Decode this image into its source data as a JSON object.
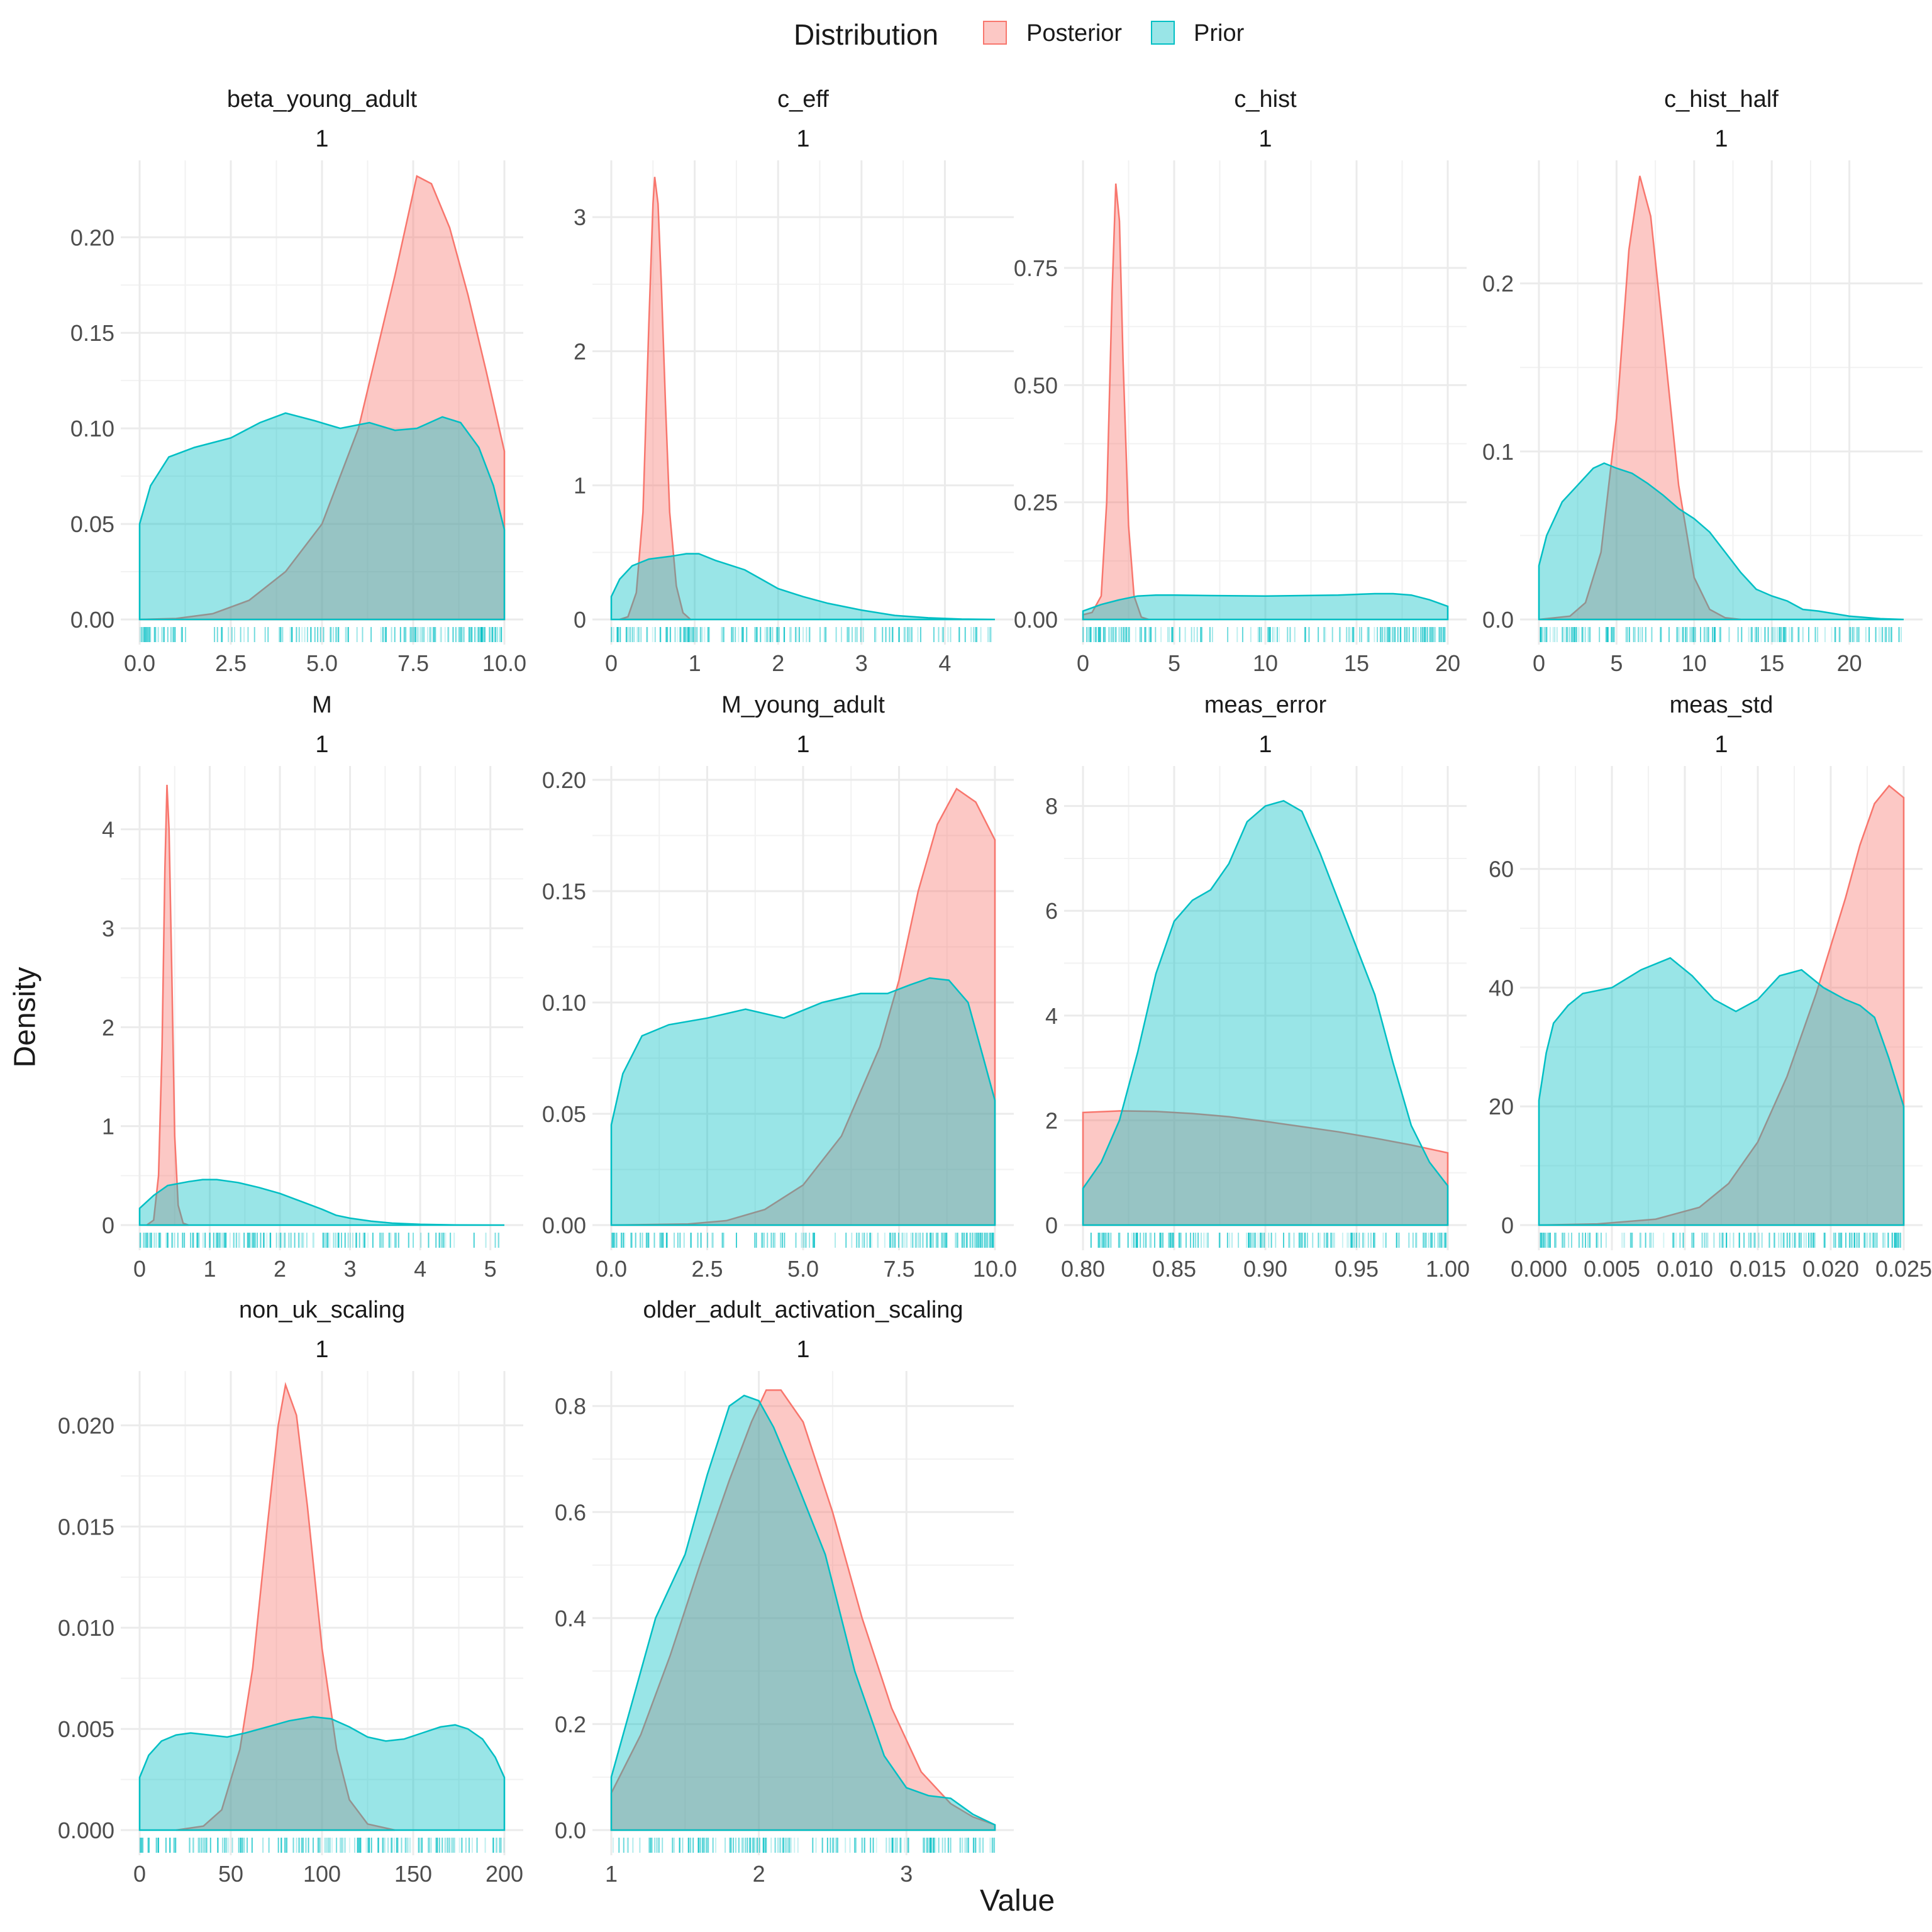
{
  "legend": {
    "title": "Distribution",
    "position": "top",
    "entries": [
      {
        "label": "Posterior",
        "fill": "#F8766D",
        "stroke": "#F8766D"
      },
      {
        "label": "Prior",
        "fill": "#00BFC4",
        "stroke": "#00BFC4"
      }
    ]
  },
  "axes": {
    "xlabel": "Value",
    "ylabel": "Density"
  },
  "colors": {
    "posterior": "#F8766D",
    "prior": "#00BFC4",
    "overlap_line": "#8a8a8a",
    "grid": "#ebebeb"
  },
  "chart_data": [
    {
      "type": "area",
      "title": "beta_young_adult",
      "subtitle": "1",
      "xlim": [
        0,
        10
      ],
      "ylim": [
        0,
        0.233
      ],
      "xticks": [
        0,
        2.5,
        5,
        7.5,
        10
      ],
      "xtick_labels": [
        "0.0",
        "2.5",
        "5.0",
        "7.5",
        "10.0"
      ],
      "yticks": [
        0,
        0.05,
        0.1,
        0.15,
        0.2
      ],
      "ytick_labels": [
        "0.00",
        "0.05",
        "0.10",
        "0.15",
        "0.20"
      ],
      "grid": true,
      "series": [
        {
          "name": "Posterior",
          "x": [
            0,
            1,
            2,
            3,
            4,
            5,
            6,
            7,
            7.6,
            8,
            8.5,
            9,
            9.5,
            10
          ],
          "y": [
            0,
            0.0005,
            0.003,
            0.01,
            0.025,
            0.05,
            0.1,
            0.18,
            0.232,
            0.228,
            0.205,
            0.17,
            0.13,
            0.088
          ]
        },
        {
          "name": "Prior",
          "x": [
            0,
            0.3,
            0.8,
            1.5,
            2.5,
            3.3,
            4,
            4.8,
            5.5,
            6.3,
            7,
            7.6,
            8.3,
            8.8,
            9.3,
            9.7,
            10
          ],
          "y": [
            0.05,
            0.07,
            0.085,
            0.09,
            0.095,
            0.103,
            0.108,
            0.104,
            0.1,
            0.103,
            0.099,
            0.1,
            0.106,
            0.103,
            0.09,
            0.07,
            0.047
          ]
        }
      ]
    },
    {
      "type": "area",
      "title": "c_eff",
      "subtitle": "1",
      "xlim": [
        0,
        4.6
      ],
      "ylim": [
        0,
        3.32
      ],
      "xticks": [
        0,
        1,
        2,
        3,
        4
      ],
      "xtick_labels": [
        "0",
        "1",
        "2",
        "3",
        "4"
      ],
      "yticks": [
        0,
        1,
        2,
        3
      ],
      "ytick_labels": [
        "0",
        "1",
        "2",
        "3"
      ],
      "grid": true,
      "series": [
        {
          "name": "Posterior",
          "x": [
            0.1,
            0.2,
            0.3,
            0.38,
            0.45,
            0.5,
            0.52,
            0.56,
            0.6,
            0.65,
            0.7,
            0.78,
            0.86,
            0.95
          ],
          "y": [
            0,
            0.02,
            0.2,
            0.8,
            2.2,
            3.1,
            3.3,
            3.1,
            2.5,
            1.6,
            0.8,
            0.25,
            0.05,
            0
          ]
        },
        {
          "name": "Prior",
          "x": [
            0,
            0.1,
            0.25,
            0.45,
            0.7,
            0.9,
            1.05,
            1.25,
            1.45,
            1.6,
            1.8,
            2.0,
            2.3,
            2.6,
            3.0,
            3.4,
            3.8,
            4.2,
            4.6
          ],
          "y": [
            0.17,
            0.3,
            0.4,
            0.45,
            0.47,
            0.49,
            0.49,
            0.44,
            0.4,
            0.37,
            0.3,
            0.23,
            0.17,
            0.12,
            0.07,
            0.03,
            0.012,
            0.003,
            0
          ]
        }
      ]
    },
    {
      "type": "area",
      "title": "c_hist",
      "subtitle": "1",
      "xlim": [
        0,
        20
      ],
      "ylim": [
        0,
        0.95
      ],
      "xticks": [
        0,
        5,
        10,
        15,
        20
      ],
      "xtick_labels": [
        "0",
        "5",
        "10",
        "15",
        "20"
      ],
      "yticks": [
        0,
        0.25,
        0.5,
        0.75
      ],
      "ytick_labels": [
        "0.00",
        "0.25",
        "0.50",
        "0.75"
      ],
      "grid": true,
      "series": [
        {
          "name": "Posterior",
          "x": [
            0,
            0.5,
            1,
            1.3,
            1.6,
            1.8,
            2.0,
            2.2,
            2.5,
            2.8,
            3.2,
            3.6
          ],
          "y": [
            0.01,
            0.015,
            0.05,
            0.25,
            0.7,
            0.93,
            0.85,
            0.55,
            0.2,
            0.05,
            0.005,
            0
          ]
        },
        {
          "name": "Prior",
          "x": [
            0,
            0.5,
            1,
            2,
            3,
            4,
            5,
            7,
            10,
            12,
            14,
            16,
            17,
            18,
            19,
            20
          ],
          "y": [
            0.018,
            0.025,
            0.032,
            0.042,
            0.05,
            0.052,
            0.052,
            0.051,
            0.05,
            0.051,
            0.052,
            0.055,
            0.055,
            0.052,
            0.042,
            0.028
          ]
        }
      ]
    },
    {
      "type": "area",
      "title": "c_hist_half",
      "subtitle": "1",
      "xlim": [
        0,
        23.5
      ],
      "ylim": [
        0,
        0.265
      ],
      "xticks": [
        0,
        5,
        10,
        15,
        20
      ],
      "xtick_labels": [
        "0",
        "5",
        "10",
        "15",
        "20"
      ],
      "yticks": [
        0,
        0.1,
        0.2
      ],
      "ytick_labels": [
        "0.0",
        "0.1",
        "0.2"
      ],
      "grid": true,
      "series": [
        {
          "name": "Posterior",
          "x": [
            0,
            2,
            3,
            4,
            5,
            5.8,
            6.5,
            7.2,
            8,
            9,
            10,
            11,
            12,
            13
          ],
          "y": [
            0,
            0.002,
            0.01,
            0.04,
            0.12,
            0.22,
            0.264,
            0.24,
            0.17,
            0.08,
            0.025,
            0.006,
            0.001,
            0
          ]
        },
        {
          "name": "Prior",
          "x": [
            0,
            0.5,
            1.5,
            2.5,
            3.5,
            4.2,
            5,
            6,
            7,
            8,
            9,
            10,
            11,
            12,
            13,
            14,
            15,
            16,
            17,
            18,
            20,
            22,
            23.5
          ],
          "y": [
            0.032,
            0.05,
            0.07,
            0.08,
            0.09,
            0.093,
            0.09,
            0.087,
            0.081,
            0.074,
            0.066,
            0.06,
            0.052,
            0.04,
            0.028,
            0.018,
            0.014,
            0.011,
            0.006,
            0.005,
            0.002,
            0.0005,
            0
          ]
        }
      ]
    },
    {
      "type": "area",
      "title": "M",
      "subtitle": "1",
      "xlim": [
        0,
        5.2
      ],
      "ylim": [
        0,
        4.5
      ],
      "xticks": [
        0,
        1,
        2,
        3,
        4,
        5
      ],
      "xtick_labels": [
        "0",
        "1",
        "2",
        "3",
        "4",
        "5"
      ],
      "yticks": [
        0,
        1,
        2,
        3,
        4
      ],
      "ytick_labels": [
        "0",
        "1",
        "2",
        "3",
        "4"
      ],
      "grid": true,
      "series": [
        {
          "name": "Posterior",
          "x": [
            0.1,
            0.2,
            0.27,
            0.32,
            0.36,
            0.39,
            0.42,
            0.46,
            0.5,
            0.55,
            0.62,
            0.7
          ],
          "y": [
            0,
            0.05,
            0.5,
            1.8,
            3.6,
            4.45,
            4.0,
            2.5,
            0.9,
            0.2,
            0.02,
            0
          ]
        },
        {
          "name": "Prior",
          "x": [
            0,
            0.2,
            0.4,
            0.7,
            0.9,
            1.1,
            1.4,
            1.7,
            2.0,
            2.3,
            2.6,
            2.8,
            3.0,
            3.3,
            3.6,
            4.0,
            4.5,
            5.2
          ],
          "y": [
            0.17,
            0.3,
            0.4,
            0.44,
            0.46,
            0.46,
            0.43,
            0.38,
            0.32,
            0.24,
            0.16,
            0.1,
            0.07,
            0.04,
            0.02,
            0.008,
            0.002,
            0
          ]
        }
      ]
    },
    {
      "type": "area",
      "title": "M_young_adult",
      "subtitle": "1",
      "xlim": [
        0,
        10
      ],
      "ylim": [
        0,
        0.2
      ],
      "xticks": [
        0,
        2.5,
        5,
        7.5,
        10
      ],
      "xtick_labels": [
        "0.0",
        "2.5",
        "5.0",
        "7.5",
        "10.0"
      ],
      "yticks": [
        0,
        0.05,
        0.1,
        0.15,
        0.2
      ],
      "ytick_labels": [
        "0.00",
        "0.05",
        "0.10",
        "0.15",
        "0.20"
      ],
      "grid": true,
      "series": [
        {
          "name": "Posterior",
          "x": [
            0,
            2,
            3,
            4,
            5,
            6,
            7,
            7.5,
            8,
            8.5,
            9,
            9.5,
            10
          ],
          "y": [
            0,
            0.0005,
            0.002,
            0.007,
            0.018,
            0.04,
            0.08,
            0.11,
            0.15,
            0.18,
            0.196,
            0.19,
            0.173
          ]
        },
        {
          "name": "Prior",
          "x": [
            0,
            0.3,
            0.8,
            1.5,
            2.5,
            3.5,
            4.5,
            5.5,
            6.5,
            7.2,
            7.8,
            8.3,
            8.8,
            9.3,
            9.7,
            10
          ],
          "y": [
            0.045,
            0.068,
            0.085,
            0.09,
            0.093,
            0.097,
            0.093,
            0.1,
            0.104,
            0.104,
            0.108,
            0.111,
            0.11,
            0.1,
            0.075,
            0.056
          ]
        }
      ]
    },
    {
      "type": "area",
      "title": "meas_error",
      "subtitle": "1",
      "xlim": [
        0.8,
        1.0
      ],
      "ylim": [
        0,
        8.5
      ],
      "xticks": [
        0.8,
        0.85,
        0.9,
        0.95,
        1.0
      ],
      "xtick_labels": [
        "0.80",
        "0.85",
        "0.90",
        "0.95",
        "1.00"
      ],
      "yticks": [
        0,
        2,
        4,
        6,
        8
      ],
      "ytick_labels": [
        "0",
        "2",
        "4",
        "6",
        "8"
      ],
      "grid": true,
      "series": [
        {
          "name": "Posterior",
          "x": [
            0.8,
            0.82,
            0.84,
            0.86,
            0.88,
            0.9,
            0.92,
            0.94,
            0.96,
            0.98,
            1.0
          ],
          "y": [
            2.15,
            2.18,
            2.17,
            2.13,
            2.07,
            1.98,
            1.88,
            1.78,
            1.66,
            1.53,
            1.38
          ]
        },
        {
          "name": "Prior",
          "x": [
            0.8,
            0.81,
            0.82,
            0.83,
            0.84,
            0.85,
            0.86,
            0.87,
            0.88,
            0.89,
            0.9,
            0.91,
            0.92,
            0.93,
            0.94,
            0.95,
            0.96,
            0.97,
            0.98,
            0.99,
            1.0
          ],
          "y": [
            0.7,
            1.2,
            2.0,
            3.3,
            4.8,
            5.8,
            6.2,
            6.4,
            6.9,
            7.7,
            8.0,
            8.1,
            7.9,
            7.1,
            6.2,
            5.3,
            4.4,
            3.1,
            1.9,
            1.2,
            0.75
          ]
        }
      ]
    },
    {
      "type": "area",
      "title": "meas_std",
      "subtitle": "1",
      "xlim": [
        0,
        0.025
      ],
      "ylim": [
        0,
        75
      ],
      "xticks": [
        0,
        0.005,
        0.01,
        0.015,
        0.02,
        0.025
      ],
      "xtick_labels": [
        "0.000",
        "0.005",
        "0.010",
        "0.015",
        "0.020",
        "0.025"
      ],
      "yticks": [
        0,
        20,
        40,
        60
      ],
      "ytick_labels": [
        "0",
        "20",
        "40",
        "60"
      ],
      "grid": true,
      "series": [
        {
          "name": "Posterior",
          "x": [
            0,
            0.004,
            0.008,
            0.011,
            0.013,
            0.015,
            0.017,
            0.019,
            0.021,
            0.022,
            0.023,
            0.024,
            0.025
          ],
          "y": [
            0,
            0.2,
            1,
            3,
            7,
            14,
            25,
            39,
            55,
            64,
            71,
            74,
            72
          ]
        },
        {
          "name": "Prior",
          "x": [
            0,
            0.0005,
            0.001,
            0.002,
            0.003,
            0.005,
            0.007,
            0.009,
            0.0105,
            0.012,
            0.0135,
            0.015,
            0.0165,
            0.018,
            0.0195,
            0.021,
            0.022,
            0.023,
            0.024,
            0.025
          ],
          "y": [
            21,
            29,
            34,
            37,
            39,
            40,
            43,
            45,
            42,
            38,
            36,
            38,
            42,
            43,
            40,
            38,
            37,
            35,
            28,
            20
          ]
        }
      ]
    },
    {
      "type": "area",
      "title": "non_uk_scaling",
      "subtitle": "1",
      "xlim": [
        0,
        200
      ],
      "ylim": [
        0,
        0.022
      ],
      "xticks": [
        0,
        50,
        100,
        150,
        200
      ],
      "xtick_labels": [
        "0",
        "50",
        "100",
        "150",
        "200"
      ],
      "yticks": [
        0,
        0.005,
        0.01,
        0.015,
        0.02
      ],
      "ytick_labels": [
        "0.000",
        "0.005",
        "0.010",
        "0.015",
        "0.020"
      ],
      "grid": true,
      "series": [
        {
          "name": "Posterior",
          "x": [
            20,
            35,
            45,
            55,
            62,
            70,
            76,
            80,
            86,
            92,
            100,
            108,
            115,
            125,
            140
          ],
          "y": [
            0,
            0.0002,
            0.001,
            0.004,
            0.008,
            0.015,
            0.02,
            0.022,
            0.0205,
            0.016,
            0.009,
            0.004,
            0.0015,
            0.0003,
            0
          ]
        },
        {
          "name": "Prior",
          "x": [
            0,
            5,
            12,
            20,
            28,
            38,
            48,
            58,
            70,
            82,
            95,
            105,
            115,
            125,
            135,
            145,
            155,
            165,
            173,
            180,
            188,
            195,
            200
          ],
          "y": [
            0.0026,
            0.0037,
            0.0044,
            0.0047,
            0.0048,
            0.0047,
            0.0046,
            0.0048,
            0.0051,
            0.0054,
            0.0056,
            0.0055,
            0.0051,
            0.0046,
            0.0044,
            0.0045,
            0.0048,
            0.0051,
            0.0052,
            0.005,
            0.0045,
            0.0036,
            0.0026
          ]
        }
      ]
    },
    {
      "type": "area",
      "title": "older_adult_activation_scaling",
      "subtitle": "1",
      "xlim": [
        1,
        3.6
      ],
      "ylim": [
        0,
        0.84
      ],
      "xticks": [
        1,
        2,
        3
      ],
      "xtick_labels": [
        "1",
        "2",
        "3"
      ],
      "yticks": [
        0,
        0.2,
        0.4,
        0.6,
        0.8
      ],
      "ytick_labels": [
        "0.0",
        "0.2",
        "0.4",
        "0.6",
        "0.8"
      ],
      "grid": true,
      "series": [
        {
          "name": "Posterior",
          "x": [
            1,
            1.2,
            1.4,
            1.6,
            1.8,
            1.95,
            2.05,
            2.15,
            2.3,
            2.5,
            2.7,
            2.9,
            3.1,
            3.3,
            3.45,
            3.6
          ],
          "y": [
            0.07,
            0.18,
            0.33,
            0.5,
            0.66,
            0.77,
            0.83,
            0.83,
            0.77,
            0.6,
            0.4,
            0.23,
            0.11,
            0.05,
            0.025,
            0.01
          ]
        },
        {
          "name": "Prior",
          "x": [
            1,
            1.15,
            1.3,
            1.5,
            1.65,
            1.8,
            1.9,
            2.0,
            2.1,
            2.25,
            2.45,
            2.65,
            2.85,
            3.0,
            3.15,
            3.3,
            3.45,
            3.6
          ],
          "y": [
            0.1,
            0.25,
            0.4,
            0.52,
            0.67,
            0.8,
            0.82,
            0.81,
            0.76,
            0.66,
            0.52,
            0.3,
            0.14,
            0.08,
            0.065,
            0.06,
            0.03,
            0.01
          ]
        }
      ]
    }
  ]
}
